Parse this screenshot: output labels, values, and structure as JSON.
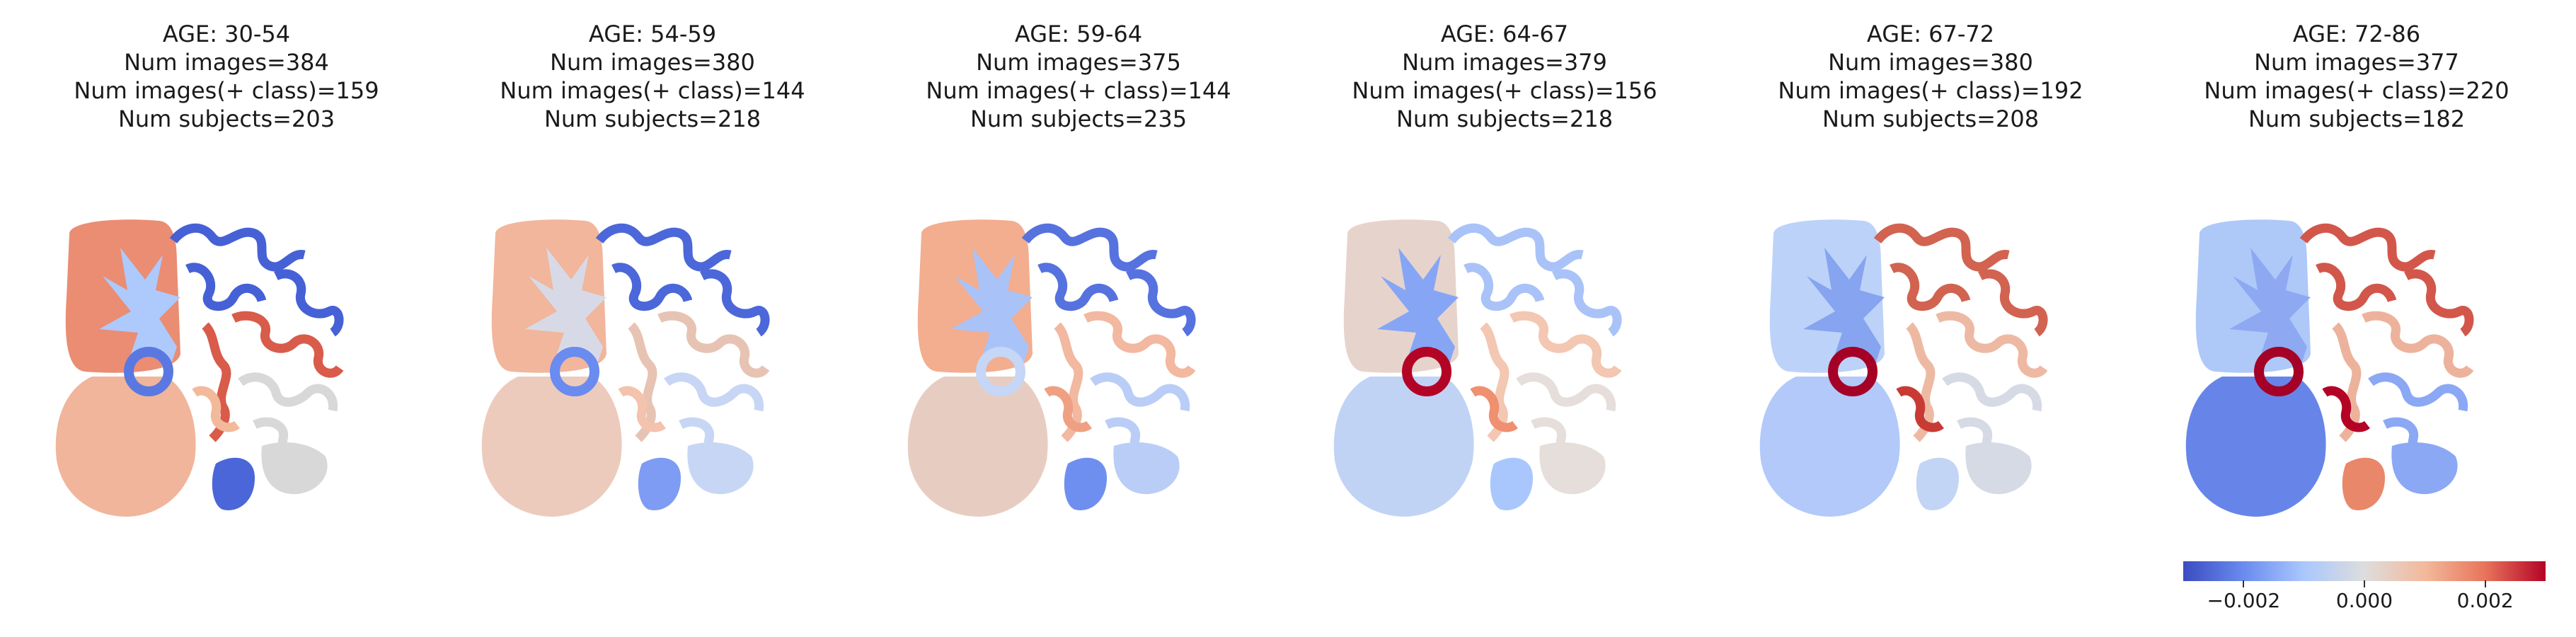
{
  "panels": [
    {
      "age": "AGE: 30-54",
      "images": "Num images=384",
      "pos": "Num images(+ class)=159",
      "subjects": "Num subjects=203",
      "colors": {
        "left_upper": "#ea8d73",
        "left_lower": "#f0b59a",
        "wm": "#aec9fb",
        "ring": "#5a78e2",
        "right_sup": "#4661d6",
        "right_mid": "#d95b4a",
        "right_inf": "#d8d8d8",
        "bottom": "#4a66d8",
        "deep": "#f3b99b"
      }
    },
    {
      "age": "AGE: 54-59",
      "images": "Num images=380",
      "pos": "Num images(+ class)=144",
      "subjects": "Num subjects=218",
      "colors": {
        "left_upper": "#f1b69b",
        "left_lower": "#eccbbd",
        "wm": "#d7dae6",
        "ring": "#6a8bef",
        "right_sup": "#4b67d9",
        "right_mid": "#e7c3b3",
        "right_inf": "#c7d6f4",
        "bottom": "#7e9cf3",
        "deep": "#f3c3ad"
      }
    },
    {
      "age": "AGE: 59-64",
      "images": "Num images=375",
      "pos": "Num images(+ class)=144",
      "subjects": "Num subjects=235",
      "colors": {
        "left_upper": "#f3ad8f",
        "left_lower": "#e7cdc1",
        "wm": "#a9c3f8",
        "ring": "#c5d6f7",
        "right_sup": "#5572df",
        "right_mid": "#f2b8a0",
        "right_inf": "#b9cdf6",
        "bottom": "#6f8ff0",
        "deep": "#efa083"
      }
    },
    {
      "age": "AGE: 64-67",
      "images": "Num images=379",
      "pos": "Num images(+ class)=156",
      "subjects": "Num subjects=218",
      "colors": {
        "left_upper": "#e6d4cc",
        "left_lower": "#c1d3f4",
        "wm": "#86a6f5",
        "ring": "#b40426",
        "right_sup": "#a9c3f8",
        "right_mid": "#f3c7b1",
        "right_inf": "#e5dedb",
        "bottom": "#aac7fd",
        "deep": "#ef9070"
      }
    },
    {
      "age": "AGE: 67-72",
      "images": "Num images=380",
      "pos": "Num images(+ class)=192",
      "subjects": "Num subjects=208",
      "colors": {
        "left_upper": "#bcd2f8",
        "left_lower": "#b2c9fa",
        "wm": "#86a4ef",
        "ring": "#a50026",
        "right_sup": "#d16350",
        "right_mid": "#eeb9a3",
        "right_inf": "#d5dae5",
        "bottom": "#c3d5f5",
        "deep": "#c83b35"
      }
    },
    {
      "age": "AGE: 72-86",
      "images": "Num images=377",
      "pos": "Num images(+ class)=220",
      "subjects": "Num subjects=182",
      "colors": {
        "left_upper": "#aec8f8",
        "left_lower": "#6785e8",
        "wm": "#8ea9f2",
        "ring": "#a50026",
        "right_sup": "#d2574a",
        "right_mid": "#edb29c",
        "right_inf": "#8ba8f4",
        "bottom": "#e9876a",
        "deep": "#b40426"
      }
    }
  ],
  "colorbar": {
    "colormap": "coolwarm",
    "range": [
      -0.003,
      0.003
    ],
    "ticks": [
      {
        "value": -0.002,
        "label": "−0.002"
      },
      {
        "value": 0.0,
        "label": "0.000"
      },
      {
        "value": 0.002,
        "label": "0.002"
      }
    ]
  }
}
